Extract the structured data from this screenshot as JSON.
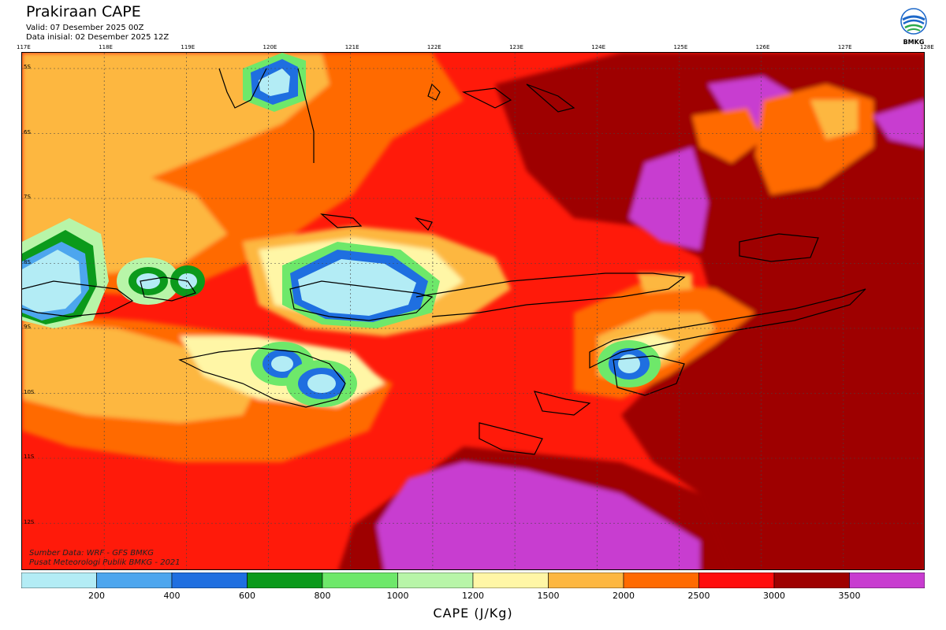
{
  "header": {
    "title": "Prakiraan CAPE",
    "valid": "Valid: 07 Desember 2025 00Z",
    "initial": "Data inisial: 02 Desember 2025 12Z"
  },
  "logo": {
    "text": "BMKG",
    "icon": "bmkg-logo-icon"
  },
  "map": {
    "lon_labels": [
      "117E",
      "118E",
      "119E",
      "120E",
      "121E",
      "122E",
      "123E",
      "124E",
      "125E",
      "126E",
      "127E",
      "128E"
    ],
    "lat_labels": [
      "5S",
      "6S",
      "7S",
      "8S",
      "9S",
      "10S",
      "11S",
      "12S"
    ],
    "footer_source": "Sumber Data: WRF - GFS BMKG",
    "footer_center": "Pusat Meteorologi Publik BMKG - 2021"
  },
  "legend": {
    "colors": [
      "#b3ecf5",
      "#4da6ee",
      "#1f6fe0",
      "#0b9a1b",
      "#6ee86a",
      "#b8f5a8",
      "#fff6a6",
      "#fdb741",
      "#ff6a00",
      "#ff0d0d",
      "#9e0000",
      "#c83cd0"
    ],
    "ticks": [
      "200",
      "400",
      "600",
      "800",
      "1000",
      "1200",
      "1500",
      "2000",
      "2500",
      "3000",
      "3500"
    ],
    "unit": "CAPE (J/Kg)"
  }
}
